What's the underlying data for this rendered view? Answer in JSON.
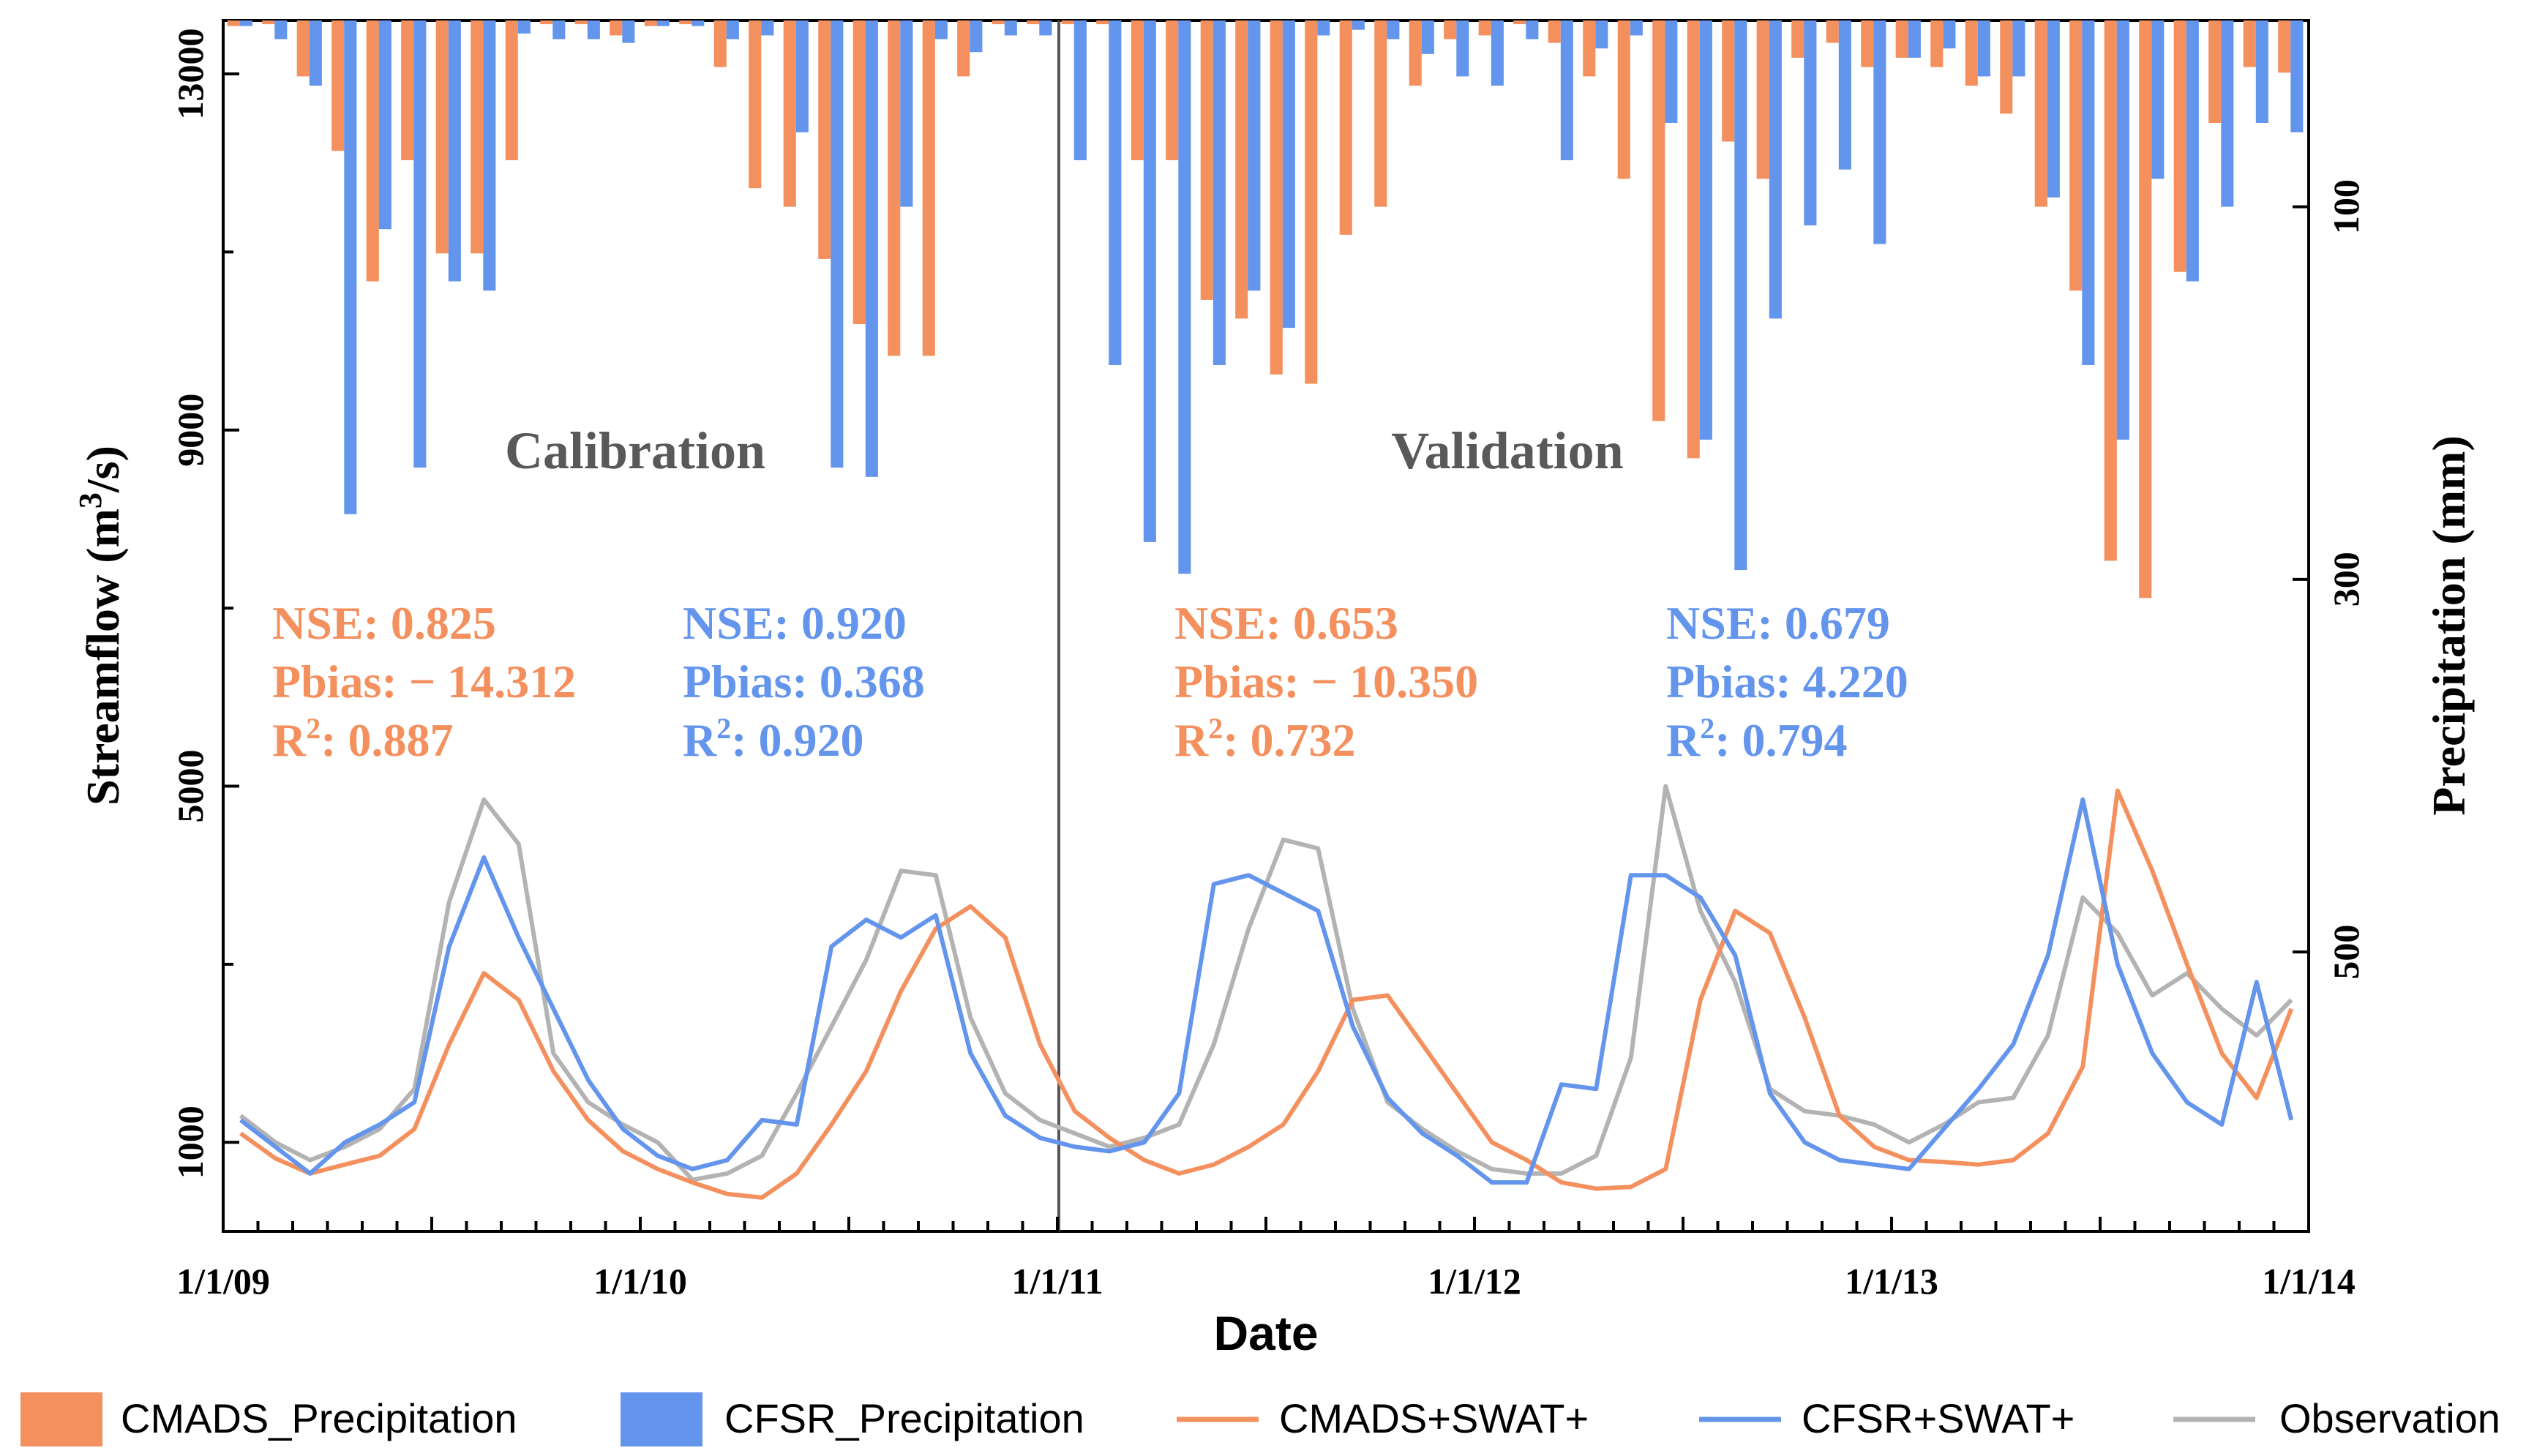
{
  "colors": {
    "cmads": "#F4905E",
    "cfsr": "#6495ED",
    "observation": "#B3B3B3",
    "period_text": "#595959",
    "axis": "#000000"
  },
  "chart_data": {
    "type": "bar+line",
    "xlabel": "Date",
    "ylabel_left_base": "Streamflow (m",
    "ylabel_left_sup": "3",
    "ylabel_left_tail": "/s)",
    "ylabel_right": "Precipitation (mm)",
    "x_ticks": [
      "1/1/09",
      "1/1/10",
      "1/1/11",
      "1/1/12",
      "1/1/13",
      "1/1/14"
    ],
    "y_left_range": [
      0,
      13600
    ],
    "y_left_ticks": [
      1000,
      5000,
      9000,
      13000
    ],
    "y_left_tick_labels": [
      "1000",
      "5000",
      "9000",
      "13000"
    ],
    "y_left_minor_ticks": [
      3000,
      7000,
      11000
    ],
    "y_right_reversed": true,
    "y_right_range": [
      0,
      650
    ],
    "y_right_ticks": [
      100,
      300,
      500
    ],
    "y_right_tick_labels": [
      "100",
      "300",
      "500"
    ],
    "months": 60,
    "cmads_precip": [
      3,
      2,
      30,
      70,
      140,
      75,
      125,
      125,
      75,
      2,
      2,
      8,
      3,
      2,
      25,
      90,
      100,
      128,
      163,
      180,
      180,
      30,
      2,
      2,
      2,
      2,
      75,
      75,
      150,
      160,
      190,
      195,
      115,
      100,
      35,
      10,
      8,
      2,
      12,
      30,
      85,
      215,
      235,
      65,
      85,
      20,
      12,
      25,
      20,
      25,
      35,
      50,
      100,
      145,
      290,
      310,
      135,
      55,
      25,
      28
    ],
    "cfsr_precip": [
      3,
      10,
      35,
      265,
      112,
      240,
      140,
      145,
      7,
      10,
      10,
      12,
      3,
      3,
      10,
      8,
      60,
      240,
      245,
      100,
      10,
      17,
      8,
      8,
      75,
      185,
      280,
      297,
      185,
      145,
      165,
      8,
      5,
      10,
      18,
      30,
      35,
      10,
      75,
      15,
      8,
      55,
      225,
      295,
      160,
      110,
      80,
      120,
      20,
      15,
      30,
      30,
      95,
      185,
      225,
      85,
      140,
      100,
      55,
      60
    ],
    "series": [
      {
        "name": "CMADS+SWAT+",
        "color_key": "cmads",
        "values": [
          1100,
          820,
          650,
          750,
          850,
          1150,
          2100,
          2900,
          2600,
          1800,
          1250,
          900,
          700,
          550,
          420,
          380,
          650,
          1200,
          1800,
          2700,
          3400,
          3650,
          3300,
          2100,
          1350,
          1050,
          800,
          650,
          750,
          950,
          1200,
          1800,
          2600,
          2650,
          2100,
          1550,
          1000,
          800,
          550,
          480,
          500,
          700,
          2600,
          3600,
          3350,
          2400,
          1300,
          950,
          800,
          780,
          750,
          800,
          1100,
          1850,
          4950,
          4050,
          3000,
          2000,
          1500,
          2500
        ]
      },
      {
        "name": "CFSR+SWAT+",
        "color_key": "cfsr",
        "values": [
          1250,
          950,
          650,
          1000,
          1200,
          1450,
          3200,
          4200,
          3300,
          2500,
          1700,
          1150,
          850,
          700,
          800,
          1250,
          1200,
          3200,
          3500,
          3300,
          3550,
          2000,
          1300,
          1050,
          950,
          900,
          1000,
          1550,
          3900,
          4000,
          3800,
          3600,
          2300,
          1500,
          1100,
          850,
          550,
          550,
          1650,
          1600,
          4000,
          4000,
          3750,
          3100,
          1550,
          1000,
          800,
          750,
          700,
          1150,
          1600,
          2100,
          3100,
          4850,
          3000,
          2000,
          1450,
          1200,
          2800,
          1250
        ]
      },
      {
        "name": "Observation",
        "color_key": "observation",
        "values": [
          1300,
          1000,
          800,
          950,
          1150,
          1600,
          3700,
          4850,
          4350,
          2000,
          1450,
          1200,
          1000,
          580,
          650,
          850,
          1550,
          2300,
          3050,
          4050,
          4000,
          2400,
          1550,
          1250,
          1100,
          950,
          1050,
          1200,
          2100,
          3400,
          4400,
          4300,
          2500,
          1450,
          1150,
          900,
          700,
          650,
          650,
          850,
          1950,
          5000,
          3600,
          2800,
          1600,
          1350,
          1300,
          1200,
          1000,
          1200,
          1450,
          1500,
          2200,
          3750,
          3350,
          2650,
          2900,
          2500,
          2200,
          2600
        ]
      }
    ],
    "annotations": [
      {
        "id": "calibration",
        "text": "Calibration"
      },
      {
        "id": "validation",
        "text": "Validation"
      }
    ],
    "stats": {
      "cal_cmads": {
        "nse": "NSE: 0.825",
        "pbias": "Pbias: − 14.312",
        "r2_prefix": "R",
        "r2_sup": "2",
        "r2_value": ": 0.887"
      },
      "cal_cfsr": {
        "nse": "NSE: 0.920",
        "pbias": "Pbias: 0.368",
        "r2_prefix": "R",
        "r2_sup": "2",
        "r2_value": ": 0.920"
      },
      "val_cmads": {
        "nse": "NSE: 0.653",
        "pbias": "Pbias: − 10.350",
        "r2_prefix": "R",
        "r2_sup": "2",
        "r2_value": ": 0.732"
      },
      "val_cfsr": {
        "nse": "NSE: 0.679",
        "pbias": "Pbias: 4.220",
        "r2_prefix": "R",
        "r2_sup": "2",
        "r2_value": ": 0.794"
      }
    },
    "legend": [
      {
        "label": "CMADS_Precipitation",
        "kind": "box",
        "color_key": "cmads"
      },
      {
        "label": "CFSR_Precipitation",
        "kind": "box",
        "color_key": "cfsr"
      },
      {
        "label": "CMADS+SWAT+",
        "kind": "line",
        "color_key": "cmads"
      },
      {
        "label": "CFSR+SWAT+",
        "kind": "line",
        "color_key": "cfsr"
      },
      {
        "label": "Observation",
        "kind": "line",
        "color_key": "observation"
      }
    ]
  }
}
